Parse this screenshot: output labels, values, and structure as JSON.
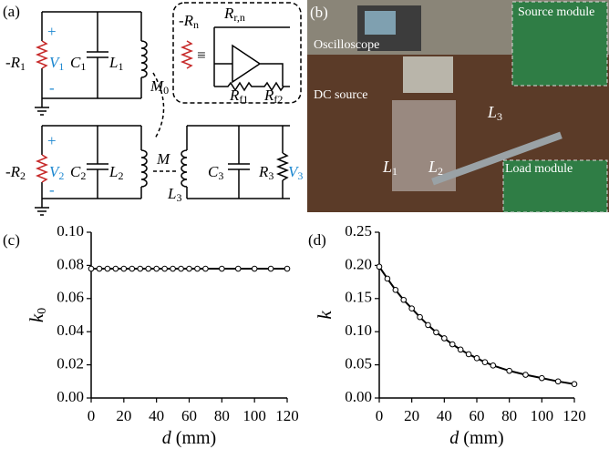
{
  "circuit": {
    "label": "(a)",
    "r1": {
      "main": "-R",
      "sub": "1"
    },
    "v1": {
      "main": "V",
      "sub": "1"
    },
    "c1": {
      "main": "C",
      "sub": "1"
    },
    "l1": {
      "main": "L",
      "sub": "1"
    },
    "plus1": "+",
    "minus1": "-",
    "m0": {
      "main": "M",
      "sub": "0"
    },
    "r2": {
      "main": "-R",
      "sub": "2"
    },
    "v2": {
      "main": "V",
      "sub": "2"
    },
    "c2": {
      "main": "C",
      "sub": "2"
    },
    "l2": {
      "main": "L",
      "sub": "2"
    },
    "plus2": "+",
    "minus2": "-",
    "m": "M",
    "l3": {
      "main": "L",
      "sub": "3"
    },
    "c3": {
      "main": "C",
      "sub": "3"
    },
    "r3": {
      "main": "R",
      "sub": "3"
    },
    "v3": {
      "main": "V",
      "sub": "3"
    },
    "inset": {
      "rn": {
        "main": "-R",
        "sub": "n"
      },
      "equiv": "≡",
      "rrn": {
        "main": "R",
        "sub": "r,n"
      },
      "rf1": {
        "main": "R",
        "sub": "f1"
      },
      "rf2": {
        "main": "R",
        "sub": "f2"
      }
    }
  },
  "photo": {
    "label": "(b)",
    "oscilloscope": "Oscilloscope",
    "dc_source": "DC source",
    "source_module": "Source module",
    "load_module": "Load module",
    "l1": {
      "main": "L",
      "sub": "1"
    },
    "l2": {
      "main": "L",
      "sub": "2"
    },
    "l3": {
      "main": "L",
      "sub": "3"
    }
  },
  "chart_data": [
    {
      "type": "line",
      "label": "(c)",
      "xlabel": {
        "var": "d",
        "unit": "(mm)"
      },
      "ylabel": {
        "main": "k",
        "sub": "0"
      },
      "xlim": [
        0,
        120
      ],
      "xticks": [
        0,
        20,
        40,
        60,
        80,
        100,
        120
      ],
      "ylim": [
        0,
        0.1
      ],
      "yticks": [
        {
          "value": 0,
          "label": "0.00"
        },
        {
          "value": 0.02,
          "label": "0.02"
        },
        {
          "value": 0.04,
          "label": "0.04"
        },
        {
          "value": 0.06,
          "label": "0.06"
        },
        {
          "value": 0.08,
          "label": "0.08"
        },
        {
          "value": 0.1,
          "label": "0.10"
        }
      ],
      "series": [
        {
          "color": "#000000",
          "marker": "circle",
          "x": [
            0,
            5,
            10,
            15,
            20,
            25,
            30,
            35,
            40,
            45,
            50,
            55,
            60,
            65,
            70,
            80,
            90,
            100,
            110,
            120
          ],
          "values": [
            0.078,
            0.078,
            0.078,
            0.078,
            0.078,
            0.078,
            0.078,
            0.078,
            0.078,
            0.078,
            0.078,
            0.078,
            0.078,
            0.078,
            0.078,
            0.078,
            0.078,
            0.078,
            0.078,
            0.078
          ]
        }
      ]
    },
    {
      "type": "line",
      "label": "(d)",
      "xlabel": {
        "var": "d",
        "unit": "(mm)"
      },
      "ylabel": {
        "main": "k"
      },
      "xlim": [
        0,
        120
      ],
      "xticks": [
        0,
        20,
        40,
        60,
        80,
        100,
        120
      ],
      "ylim": [
        0,
        0.25
      ],
      "yticks": [
        {
          "value": 0,
          "label": "0.00"
        },
        {
          "value": 0.05,
          "label": "0.05"
        },
        {
          "value": 0.1,
          "label": "0.10"
        },
        {
          "value": 0.15,
          "label": "0.15"
        },
        {
          "value": 0.2,
          "label": "0.20"
        },
        {
          "value": 0.25,
          "label": "0.25"
        }
      ],
      "series": [
        {
          "color": "#000000",
          "marker": "circle",
          "x": [
            0,
            5,
            10,
            15,
            20,
            25,
            30,
            35,
            40,
            45,
            50,
            55,
            60,
            65,
            70,
            80,
            90,
            100,
            110,
            120
          ],
          "values": [
            0.198,
            0.18,
            0.163,
            0.148,
            0.135,
            0.122,
            0.11,
            0.099,
            0.09,
            0.081,
            0.073,
            0.066,
            0.06,
            0.054,
            0.049,
            0.041,
            0.035,
            0.03,
            0.025,
            0.021
          ]
        }
      ]
    }
  ]
}
